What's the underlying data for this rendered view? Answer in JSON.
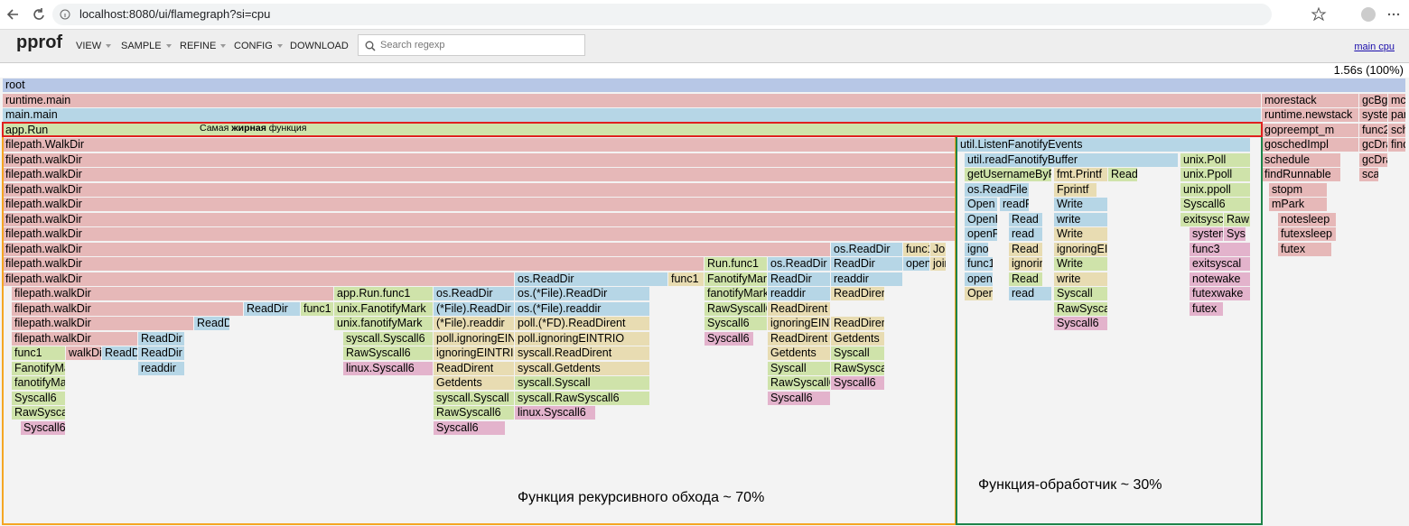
{
  "browser": {
    "url": "localhost:8080/ui/flamegraph?si=cpu"
  },
  "toolbar": {
    "logo": "pprof",
    "menu": [
      "VIEW",
      "SAMPLE",
      "REFINE",
      "CONFIG",
      "DOWNLOAD"
    ],
    "search_placeholder": "Search regexp",
    "profile_link": "main cpu"
  },
  "flamegraph": {
    "total": "1.56s (100%)",
    "frames": [
      "root",
      "runtime.main",
      "morestack",
      "gcBgM",
      "mca",
      "main.main",
      "runtime.newstack",
      "system",
      "park",
      "app.Run",
      "gopreempt_m",
      "func2",
      "sche",
      "filepath.WalkDir",
      "util.ListenFanotifyEvents",
      "goschedImpl",
      "gcDrain",
      "findF",
      "filepath.walkDir",
      "util.readFanotifyBuffer",
      "unix.Poll",
      "schedule",
      "gcDrai",
      "filepath.walkDir",
      "getUsernameByPID",
      "fmt.Printf",
      "Read",
      "unix.Ppoll",
      "findRunnable",
      "scan",
      "filepath.walkDir",
      "os.ReadFile",
      "Fprintf",
      "unix.ppoll",
      "stopm",
      "filepath.walkDir",
      "Open",
      "readFileC",
      "Write",
      "Syscall6",
      "mPark",
      "filepath.walkDir",
      "OpenFile",
      "Read",
      "write",
      "exitsyscall",
      "Raw",
      "notesleep",
      "filepath.walkDir",
      "openFile",
      "read",
      "Write",
      "systemsta",
      "Sysc",
      "futexsleep",
      "filepath.walkDir",
      "os.ReadDir",
      "func1",
      "Join",
      "ignoring",
      "Read",
      "ignoringEINTR",
      "func3",
      "futex",
      "filepath.walkDir",
      "Run.func1",
      "os.ReadDir",
      "ReadDir",
      "open",
      "join",
      "func1",
      "ignoring",
      "Write",
      "exitsyscal",
      "filepath.walkDir",
      "os.ReadDir",
      "func1",
      "FanotifyMark",
      "ReadDir",
      "readdir",
      "open",
      "Read",
      "write",
      "notewake",
      "filepath.walkDir",
      "app.Run.func1",
      "os.ReadDir",
      "os.(*File).ReadDir",
      "fanotifyMark",
      "readdir",
      "ReadDirent",
      "Open",
      "read",
      "Syscall",
      "futexwake",
      "filepath.walkDir",
      "ReadDir",
      "func1",
      "unix.FanotifyMark",
      "(*File).ReadDir",
      "os.(*File).readdir",
      "RawSyscall6",
      "ReadDirent",
      "RawSyscall6",
      "futex",
      "filepath.walkDir",
      "ReadDir",
      "unix.fanotifyMark",
      "(*File).readdir",
      "poll.(*FD).ReadDirent",
      "Syscall6",
      "ignoringEINTR",
      "ReadDirent",
      "Syscall6",
      "filepath.walkDir",
      "ReadDir",
      "syscall.Syscall6",
      "poll.ignoringEINTRIO",
      "poll.ignoringEINTRIO",
      "Syscall6",
      "ReadDirent",
      "Getdents",
      "func1",
      "walkDir",
      "ReadDir",
      "ReadDir",
      "RawSyscall6",
      "ignoringEINTRIO",
      "syscall.ReadDirent",
      "Getdents",
      "Syscall",
      "FanotifyMark",
      "readdir",
      "linux.Syscall6",
      "ReadDirent",
      "syscall.Getdents",
      "Syscall",
      "RawSyscall6",
      "fanotifyMark",
      "Getdents",
      "syscall.Syscall",
      "RawSyscall6",
      "Syscall6",
      "Syscall6",
      "syscall.Syscall",
      "syscall.RawSyscall6",
      "Syscall6",
      "RawSyscall6",
      "RawSyscall6",
      "linux.Syscall6",
      "Syscall6",
      "Syscall6"
    ]
  },
  "annotations": {
    "hot_function": [
      "Самая ",
      "жирная",
      " функция"
    ],
    "recursive": "Функция рекурсивного обхода ~ 70%",
    "handler": "Функция-обработчик ~ 30%"
  }
}
